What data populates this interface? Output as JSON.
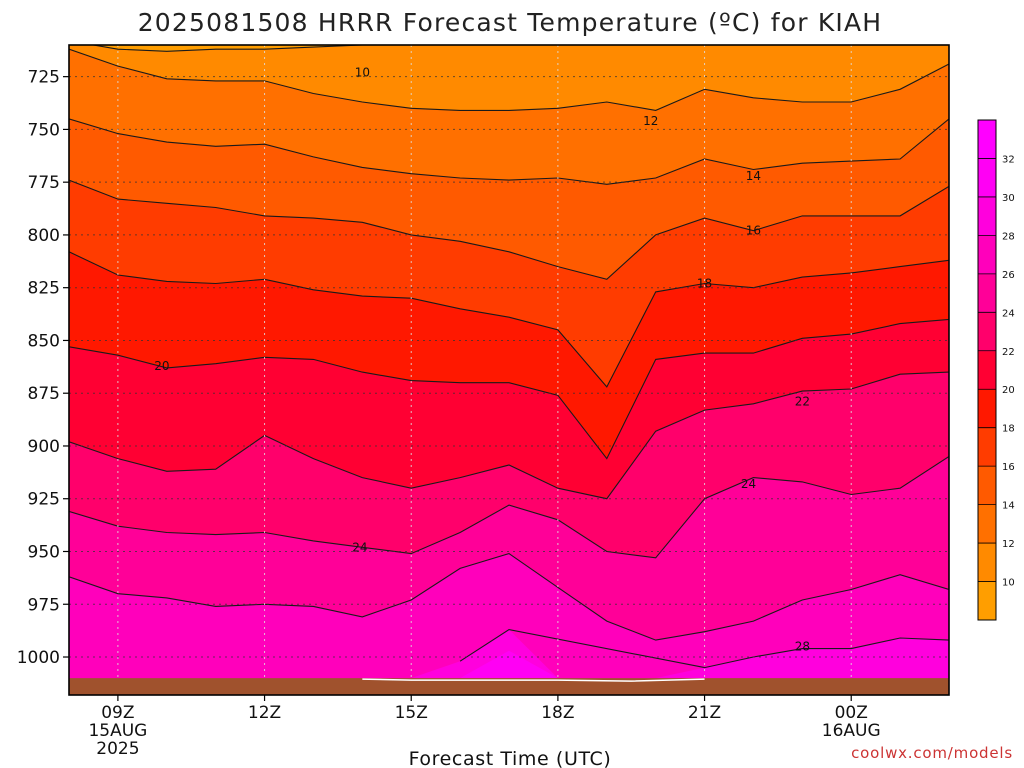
{
  "chart_data": {
    "type": "heatmap",
    "title": "2025081508 HRRR Forecast Temperature (ºC) for KIAH",
    "xlabel": "Forecast Time (UTC)",
    "ylabel": "",
    "x_hours": [
      8,
      9,
      10,
      11,
      12,
      13,
      14,
      15,
      16,
      17,
      18,
      19,
      20,
      21,
      22,
      23,
      24,
      25,
      26
    ],
    "xlim": [
      8,
      26
    ],
    "x_ticks": [
      {
        "hour": 9,
        "lines": [
          "09Z",
          "15AUG",
          "2025"
        ]
      },
      {
        "hour": 12,
        "lines": [
          "12Z"
        ]
      },
      {
        "hour": 15,
        "lines": [
          "15Z"
        ]
      },
      {
        "hour": 18,
        "lines": [
          "18Z"
        ]
      },
      {
        "hour": 21,
        "lines": [
          "21Z"
        ]
      },
      {
        "hour": 24,
        "lines": [
          "00Z",
          "16AUG"
        ]
      }
    ],
    "ylim": [
      1018,
      710
    ],
    "y_ticks": [
      725,
      750,
      775,
      800,
      825,
      850,
      875,
      900,
      925,
      950,
      975,
      1000
    ],
    "surface_pressure": 1010,
    "contour_levels": [
      10,
      12,
      14,
      16,
      18,
      20,
      22,
      24,
      26,
      28,
      30
    ],
    "contours": [
      {
        "level": 10,
        "p": [
          708,
          712,
          713,
          712,
          712,
          711,
          710,
          709,
          709,
          708,
          707,
          706,
          706,
          705,
          704,
          704,
          704,
          703,
          703
        ]
      },
      {
        "level": 12,
        "p": [
          712,
          720,
          726,
          727,
          727,
          733,
          737,
          740,
          741,
          741,
          740,
          737,
          741,
          731,
          735,
          737,
          737,
          731,
          719
        ]
      },
      {
        "level": 14,
        "p": [
          745,
          752,
          756,
          758,
          757,
          763,
          768,
          771,
          773,
          774,
          773,
          776,
          773,
          764,
          769,
          766,
          765,
          764,
          745
        ]
      },
      {
        "level": 16,
        "p": [
          774,
          783,
          785,
          787,
          791,
          792,
          794,
          800,
          803,
          808,
          815,
          821,
          800,
          792,
          798,
          791,
          791,
          791,
          777
        ]
      },
      {
        "level": 18,
        "p": [
          808,
          819,
          822,
          823,
          821,
          826,
          829,
          830,
          835,
          839,
          845,
          872,
          827,
          823,
          825,
          820,
          818,
          815,
          812
        ]
      },
      {
        "level": 20,
        "p": [
          853,
          857,
          863,
          861,
          858,
          859,
          865,
          869,
          870,
          870,
          876,
          906,
          859,
          856,
          856,
          849,
          847,
          842,
          840
        ]
      },
      {
        "level": 22,
        "p": [
          898,
          906,
          912,
          911,
          895,
          906,
          915,
          920,
          915,
          909,
          920,
          925,
          893,
          883,
          880,
          874,
          873,
          866,
          865
        ]
      },
      {
        "level": 24,
        "p": [
          931,
          938,
          941,
          942,
          941,
          945,
          948,
          951,
          941,
          928,
          935,
          950,
          953,
          925,
          915,
          917,
          923,
          920,
          905
        ]
      },
      {
        "level": 26,
        "p": [
          962,
          970,
          972,
          976,
          975,
          976,
          981,
          973,
          958,
          951,
          967,
          983,
          992,
          988,
          983,
          973,
          968,
          961,
          968
        ]
      },
      {
        "level": 28,
        "p": [
          1010,
          1010,
          1010,
          1010,
          1010,
          1010,
          1010,
          1010,
          1002,
          987,
          1010,
          1010,
          1010,
          1005,
          1000,
          996,
          996,
          991,
          992
        ]
      },
      {
        "level": 30,
        "p": [
          1010,
          1010,
          1010,
          1010,
          1010,
          1010,
          1010,
          1010,
          1010,
          997,
          1010,
          1010,
          1010,
          1010,
          1010,
          1010,
          1010,
          1010,
          1010
        ]
      }
    ],
    "contour_labels": [
      {
        "text": "10",
        "x": 14.0,
        "p": 723
      },
      {
        "text": "12",
        "x": 19.9,
        "p": 746
      },
      {
        "text": "14",
        "x": 22.0,
        "p": 772
      },
      {
        "text": "16",
        "x": 22.0,
        "p": 798
      },
      {
        "text": "18",
        "x": 21.0,
        "p": 823
      },
      {
        "text": "20",
        "x": 9.9,
        "p": 862
      },
      {
        "text": "22",
        "x": 23.0,
        "p": 879
      },
      {
        "text": "24",
        "x": 21.9,
        "p": 918
      },
      {
        "text": "24",
        "x": 13.95,
        "p": 948
      },
      {
        "text": "28",
        "x": 23.0,
        "p": 995
      }
    ],
    "band_colors": [
      "#ff9e00",
      "#ff8a00",
      "#ff7000",
      "#ff5a00",
      "#ff3c00",
      "#ff1800",
      "#ff0033",
      "#ff006b",
      "#ff0098",
      "#ff00bb",
      "#ff00dd",
      "#ff00f4"
    ],
    "colorbar": {
      "ticks": [
        10,
        12,
        14,
        16,
        18,
        20,
        22,
        24,
        26,
        28,
        30,
        32
      ],
      "colors": [
        "#ff9e00",
        "#ff8a00",
        "#ff7000",
        "#ff5a00",
        "#ff3c00",
        "#ff1800",
        "#ff0033",
        "#ff006b",
        "#ff0098",
        "#ff00bb",
        "#ff00dd",
        "#ff00f4",
        "#ff00ff"
      ]
    },
    "grid": true,
    "ground_color": "#a0522d"
  },
  "credit": "coolwx.com/models"
}
